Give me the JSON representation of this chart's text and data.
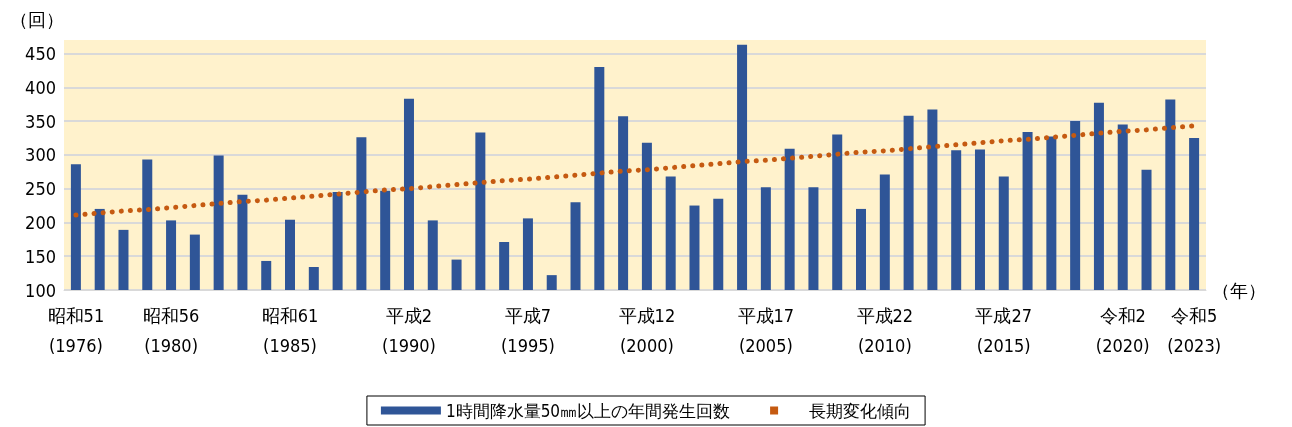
{
  "chart_data": {
    "type": "bar",
    "ylabel": "（回）",
    "xlabel": "（年）",
    "categories": [
      "昭和51\n(1976)",
      null,
      null,
      null,
      "昭和56\n(1980)",
      null,
      null,
      null,
      null,
      "昭和61\n(1985)",
      null,
      null,
      null,
      null,
      "平成2\n(1990)",
      null,
      null,
      null,
      null,
      "平成7\n(1995)",
      null,
      null,
      null,
      null,
      "平成12\n(2000)",
      null,
      null,
      null,
      null,
      "平成17\n(2005)",
      null,
      null,
      null,
      null,
      "平成22\n(2010)",
      null,
      null,
      null,
      null,
      "平成27\n(2015)",
      null,
      null,
      null,
      null,
      "令和2\n(2020)",
      null,
      null,
      "令和5\n(2023)"
    ],
    "series": [
      {
        "name": "1時間降水量50㎜以上の年間発生回数",
        "color": "#2f5597",
        "values": [
          286,
          220,
          189,
          293,
          203,
          182,
          299,
          241,
          143,
          204,
          134,
          245,
          326,
          247,
          383,
          203,
          145,
          333,
          171,
          206,
          122,
          230,
          430,
          357,
          318,
          268,
          225,
          235,
          463,
          252,
          309,
          252,
          330,
          220,
          271,
          358,
          367,
          307,
          308,
          268,
          334,
          327,
          350,
          377,
          345,
          278,
          382,
          325
        ]
      },
      {
        "name": "長期変化傾向",
        "type": "line",
        "color": "#c55a11",
        "line_style": "dotted",
        "marker": "none",
        "values": [
          211,
          214,
          217,
          219,
          222,
          225,
          228,
          231,
          233,
          236,
          239,
          242,
          245,
          248,
          250,
          253,
          256,
          259,
          262,
          264,
          267,
          270,
          273,
          276,
          278,
          281,
          284,
          287,
          290,
          292,
          295,
          298,
          301,
          304,
          306,
          309,
          312,
          315,
          318,
          321,
          323,
          326,
          329,
          332,
          335,
          337,
          340,
          343
        ]
      }
    ],
    "ylim": [
      100,
      470
    ],
    "yticks": [
      100,
      150,
      200,
      250,
      300,
      350,
      400,
      450
    ],
    "grid": "y",
    "legend": "bottom"
  }
}
